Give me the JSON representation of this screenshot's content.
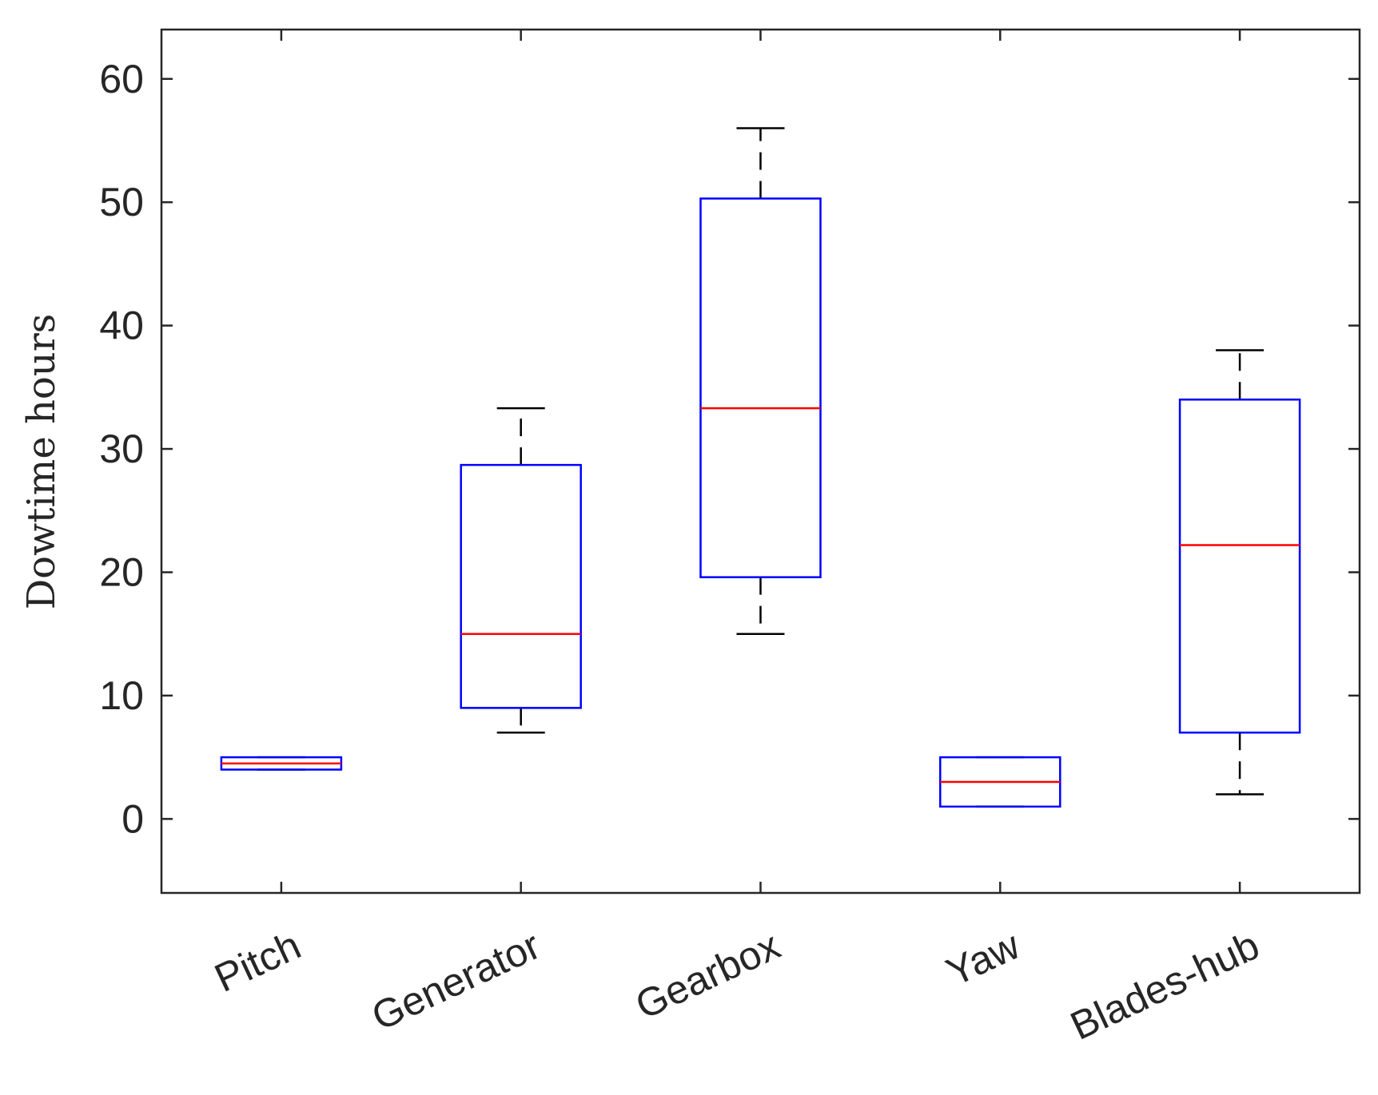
{
  "chart_data": {
    "type": "box",
    "title": "",
    "xlabel": "",
    "ylabel": "Dowtime hours",
    "ylim": [
      -6,
      64
    ],
    "yticks": [
      0,
      10,
      20,
      30,
      40,
      50,
      60
    ],
    "ytick_labels": [
      "0",
      "10",
      "20",
      "30",
      "40",
      "50",
      "60"
    ],
    "grid": false,
    "categories": [
      "Pitch",
      "Generator",
      "Gearbox",
      "Yaw",
      "Blades-hub"
    ],
    "boxes": [
      {
        "category": "Pitch",
        "whisker_low": 4,
        "q1": 4,
        "median": 4.5,
        "q3": 5,
        "whisker_high": 5
      },
      {
        "category": "Generator",
        "whisker_low": 7,
        "q1": 9,
        "median": 15,
        "q3": 28.7,
        "whisker_high": 33.3
      },
      {
        "category": "Gearbox",
        "whisker_low": 15,
        "q1": 19.6,
        "median": 33.3,
        "q3": 50.3,
        "whisker_high": 56
      },
      {
        "category": "Yaw",
        "whisker_low": 1,
        "q1": 1,
        "median": 3,
        "q3": 5,
        "whisker_high": 5
      },
      {
        "category": "Blades-hub",
        "whisker_low": 2,
        "q1": 7,
        "median": 22.2,
        "q3": 34,
        "whisker_high": 38
      }
    ],
    "colors": {
      "box": "#0000ff",
      "median": "#ff0000",
      "whisker": "#000000",
      "axis": "#262626"
    }
  }
}
